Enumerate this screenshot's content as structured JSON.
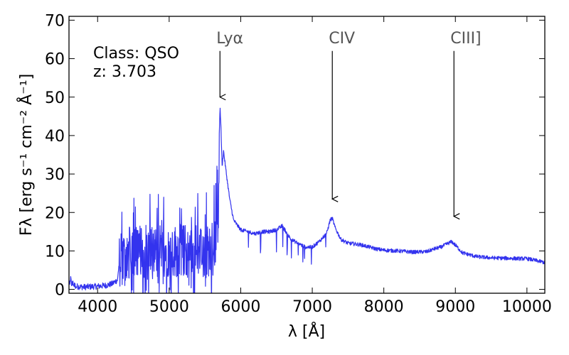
{
  "chart_data": {
    "type": "line",
    "xlabel": "λ [Å]",
    "ylabel": "Fλ [erg s⁻¹ cm⁻² Å⁻¹]",
    "xlim": [
      3600,
      10250
    ],
    "ylim": [
      -1,
      71
    ],
    "xticks": [
      4000,
      5000,
      6000,
      7000,
      8000,
      9000,
      10000
    ],
    "yticks": [
      0,
      10,
      20,
      30,
      40,
      50,
      60,
      70
    ],
    "grid": false,
    "annotations": {
      "class_text": "Class: QSO",
      "z_text": "z: 3.703"
    },
    "emission_lines": [
      {
        "label": "Lyα",
        "wavelength": 5710,
        "arrow_from": 62,
        "arrow_to": 50
      },
      {
        "label": "CIV",
        "wavelength": 7280,
        "arrow_from": 62,
        "arrow_to": 23.5
      },
      {
        "label": "CIII]",
        "wavelength": 8980,
        "arrow_from": 62,
        "arrow_to": 19
      }
    ],
    "series": [
      {
        "color": "#3333ee",
        "anchors": [
          [
            3600,
            2
          ],
          [
            3700,
            0.8
          ],
          [
            3800,
            0.6
          ],
          [
            3900,
            0.7
          ],
          [
            4000,
            0.8
          ],
          [
            4100,
            1.0
          ],
          [
            4200,
            1.4
          ],
          [
            4280,
            2.5
          ],
          [
            4300,
            7
          ],
          [
            4400,
            9
          ],
          [
            4500,
            10
          ],
          [
            4600,
            10
          ],
          [
            4700,
            10
          ],
          [
            4800,
            10
          ],
          [
            4900,
            10
          ],
          [
            5000,
            10
          ],
          [
            5100,
            10
          ],
          [
            5200,
            10
          ],
          [
            5300,
            10
          ],
          [
            5400,
            10
          ],
          [
            5500,
            10
          ],
          [
            5600,
            10
          ],
          [
            5650,
            12
          ],
          [
            5690,
            22
          ],
          [
            5700,
            40
          ],
          [
            5710,
            47.5
          ],
          [
            5720,
            44
          ],
          [
            5740,
            32
          ],
          [
            5760,
            36
          ],
          [
            5800,
            30
          ],
          [
            5850,
            23
          ],
          [
            5900,
            18
          ],
          [
            6000,
            15.5
          ],
          [
            6100,
            15
          ],
          [
            6200,
            14.5
          ],
          [
            6300,
            15
          ],
          [
            6400,
            15
          ],
          [
            6500,
            15.5
          ],
          [
            6580,
            16.5
          ],
          [
            6650,
            14.5
          ],
          [
            6700,
            13
          ],
          [
            6800,
            12
          ],
          [
            6900,
            11
          ],
          [
            7000,
            11
          ],
          [
            7100,
            12.5
          ],
          [
            7200,
            14.5
          ],
          [
            7250,
            18
          ],
          [
            7280,
            18.5
          ],
          [
            7320,
            16
          ],
          [
            7400,
            13
          ],
          [
            7500,
            12
          ],
          [
            7600,
            11.8
          ],
          [
            7700,
            11.5
          ],
          [
            7800,
            11
          ],
          [
            7900,
            10.5
          ],
          [
            8000,
            10.2
          ],
          [
            8200,
            10
          ],
          [
            8400,
            9.7
          ],
          [
            8600,
            9.8
          ],
          [
            8700,
            10.5
          ],
          [
            8800,
            11
          ],
          [
            8900,
            12
          ],
          [
            8950,
            12.4
          ],
          [
            9000,
            11.5
          ],
          [
            9100,
            9.5
          ],
          [
            9300,
            8.5
          ],
          [
            9500,
            8.2
          ],
          [
            9700,
            8.1
          ],
          [
            9900,
            8
          ],
          [
            10000,
            8
          ],
          [
            10100,
            7.6
          ],
          [
            10250,
            7
          ]
        ],
        "noisy_x_range": [
          4300,
          5700
        ],
        "noisy_amplitude": 7,
        "high_noise_x_range": [
          3600,
          4300
        ],
        "high_noise_amplitude": 0.8,
        "mid_noise_x_range": [
          5700,
          10250
        ],
        "mid_noise_amplitude": 0.5
      }
    ]
  }
}
